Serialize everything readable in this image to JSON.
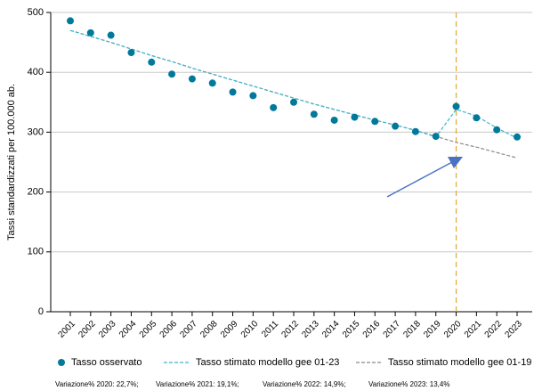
{
  "chart_data": {
    "type": "line",
    "y_label": "Tassi standardizzati per 100.000 ab.",
    "categories": [
      "2001",
      "2002",
      "2003",
      "2004",
      "2005",
      "2006",
      "2007",
      "2008",
      "2009",
      "2010",
      "2011",
      "2012",
      "2013",
      "2014",
      "2015",
      "2016",
      "2017",
      "2018",
      "2019",
      "2020",
      "2021",
      "2022",
      "2023"
    ],
    "series": [
      {
        "name": "Tasso osservato",
        "color": "#00799b",
        "style": "markers",
        "values": [
          486,
          466,
          462,
          433,
          417,
          397,
          389,
          382,
          367,
          361,
          341,
          350,
          330,
          320,
          325,
          318,
          310,
          301,
          293,
          343,
          324,
          304,
          292
        ]
      },
      {
        "name": "Tasso stimato modello gee 01-23",
        "color": "#3fb5cf",
        "style": "dashed",
        "values": [
          470,
          460,
          450,
          439,
          428,
          418,
          407,
          397,
          387,
          377,
          367,
          357,
          347,
          338,
          329,
          320,
          312,
          303,
          292,
          338,
          327,
          307,
          290
        ]
      },
      {
        "name": "Tasso stimato modello gee 01-19",
        "color": "#8a8a8a",
        "style": "dashed",
        "values": [
          470,
          460,
          450,
          439,
          428,
          418,
          407,
          397,
          387,
          377,
          367,
          357,
          347,
          338,
          329,
          320,
          312,
          303,
          293,
          283,
          275,
          266,
          257
        ]
      }
    ],
    "reference_category": "2020",
    "reference_color": "#e0a82e",
    "ylim": [
      0,
      500
    ],
    "yticks": [
      0,
      100,
      200,
      300,
      400,
      500
    ],
    "grid": true,
    "notes": [
      "Variazione% 2020: 22,7%;",
      "Variazione% 2021: 19,1%;",
      "Variazione% 2022:  14,9%;",
      "Variazione% 2023:  13,4%"
    ]
  }
}
